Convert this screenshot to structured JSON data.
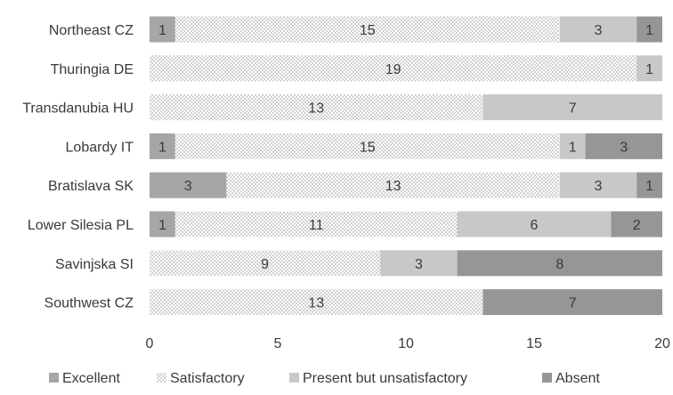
{
  "chart_data": {
    "type": "bar",
    "orientation": "horizontal",
    "stacked": true,
    "categories": [
      "Northeast CZ",
      "Thuringia DE",
      "Transdanubia HU",
      "Lobardy IT",
      "Bratislava SK",
      "Lower Silesia PL",
      "Savinjska SI",
      "Southwest CZ"
    ],
    "series": [
      {
        "name": "Excellent",
        "values": [
          1,
          0,
          0,
          1,
          3,
          1,
          0,
          0
        ],
        "color": "#a6a6a6",
        "pattern": "solid"
      },
      {
        "name": "Satisfactory",
        "values": [
          15,
          19,
          13,
          15,
          13,
          11,
          9,
          13
        ],
        "color": "#ffffff",
        "pattern": "dots"
      },
      {
        "name": "Present but unsatisfactory",
        "values": [
          3,
          1,
          7,
          1,
          3,
          6,
          3,
          0
        ],
        "color": "#c8c8c8",
        "pattern": "solid"
      },
      {
        "name": "Absent",
        "values": [
          1,
          0,
          0,
          3,
          1,
          2,
          8,
          7
        ],
        "color": "#969696",
        "pattern": "solid"
      }
    ],
    "xlim": [
      0,
      20
    ],
    "xticks": [
      0,
      5,
      10,
      15,
      20
    ],
    "title": "",
    "xlabel": "",
    "ylabel": "",
    "grid": false,
    "legend": "bottom"
  }
}
